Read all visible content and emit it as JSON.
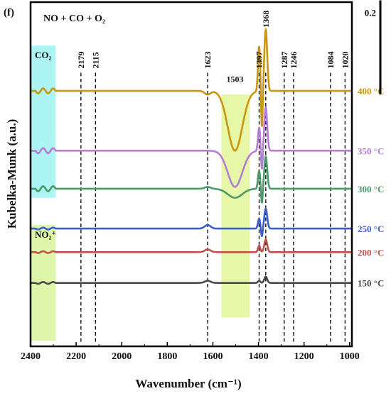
{
  "panel_label": "(f)",
  "chart_data": {
    "type": "line",
    "title": "NO + CO + O₂",
    "xlabel": "Wavenumber (cm⁻¹)",
    "ylabel": "Kubelka-Munk (a.u.)",
    "xlim": [
      2400,
      990
    ],
    "x_reversed": true,
    "x_ticks": [
      "2400",
      "2200",
      "2000",
      "1800",
      "1600",
      "1400",
      "1200",
      "1000"
    ],
    "x_tick_values": [
      2400,
      2200,
      2000,
      1800,
      1600,
      1400,
      1200,
      1000
    ],
    "scale_bar_label": "0.2",
    "scale_bar_value": 0.2,
    "y_offsets_au": [
      0.0,
      0.17,
      0.3,
      0.52,
      0.73,
      1.06
    ],
    "y_range_au": [
      -0.35,
      1.55
    ],
    "peak_lines": [
      {
        "label": "2179",
        "x": 2179
      },
      {
        "label": "2115",
        "x": 2115
      },
      {
        "label": "1623",
        "x": 1623
      },
      {
        "label": "1397",
        "x": 1397
      },
      {
        "label": "1368",
        "x": 1368
      },
      {
        "label": "1287",
        "x": 1287
      },
      {
        "label": "1246",
        "x": 1246
      },
      {
        "label": "1084",
        "x": 1084
      },
      {
        "label": "1020",
        "x": 1020
      }
    ],
    "bands": [
      {
        "label": "CO₂",
        "x_range": [
          2400,
          2290
        ],
        "color": "#9ff2f2"
      },
      {
        "label": "NO₂⁺",
        "x_range": [
          2400,
          2290
        ],
        "color": "#d8f59a"
      },
      {
        "label": "1503",
        "x_range": [
          1563,
          1438
        ],
        "color": "#e2f799"
      }
    ],
    "series": [
      {
        "name": "150 °C",
        "color": "#4a4a4a",
        "peaks": [
          {
            "x": 1623,
            "a": 0.012
          },
          {
            "x": 1397,
            "a": 0.012
          },
          {
            "x": 1368,
            "a": 0.035
          }
        ]
      },
      {
        "name": "200 °C",
        "color": "#c1504a",
        "peaks": [
          {
            "x": 1623,
            "a": 0.015
          },
          {
            "x": 1397,
            "a": 0.035
          },
          {
            "x": 1368,
            "a": 0.07
          }
        ]
      },
      {
        "name": "250 °C",
        "color": "#3a5fcd",
        "peaks": [
          {
            "x": 1623,
            "a": 0.02
          },
          {
            "x": 1397,
            "a": 0.055
          },
          {
            "x": 1368,
            "a": 0.11
          }
        ]
      },
      {
        "name": "300 °C",
        "color": "#4a9a6a",
        "peaks": [
          {
            "x": 1623,
            "a": 0.01
          },
          {
            "x": 1503,
            "a": -0.05
          },
          {
            "x": 1397,
            "a": 0.1
          },
          {
            "x": 1368,
            "a": 0.18
          }
        ]
      },
      {
        "name": "350 °C",
        "color": "#b57dd6",
        "peaks": [
          {
            "x": 1623,
            "a": 0.0
          },
          {
            "x": 1503,
            "a": -0.2
          },
          {
            "x": 1397,
            "a": 0.13
          },
          {
            "x": 1368,
            "a": 0.24
          }
        ]
      },
      {
        "name": "400 °C",
        "color": "#c9960e",
        "peaks": [
          {
            "x": 1623,
            "a": -0.02
          },
          {
            "x": 1503,
            "a": -0.33
          },
          {
            "x": 1397,
            "a": 0.25
          },
          {
            "x": 1368,
            "a": 0.34
          }
        ]
      }
    ]
  }
}
